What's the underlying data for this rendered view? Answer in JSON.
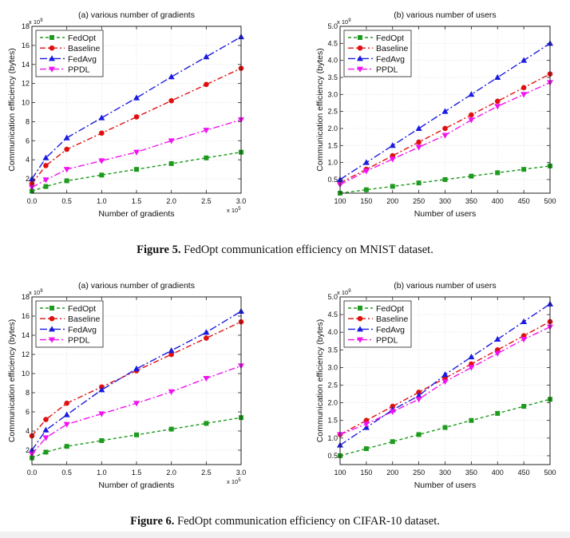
{
  "figures": [
    {
      "label": "Figure 5.",
      "caption": "FedOpt communication efficiency on MNIST dataset."
    },
    {
      "label": "Figure 6.",
      "caption": "FedOpt communication efficiency on CIFAR-10 dataset."
    }
  ],
  "colors": {
    "FedOpt": "#1e9a1e",
    "Baseline": "#e01010",
    "FedAvg": "#1a1ae0",
    "PPDL": "#f013f0"
  },
  "chart_data": [
    {
      "type": "line",
      "title": "(a) various number of gradients",
      "xlabel": "Number of gradients",
      "ylabel": "Communication efficiency (bytes)",
      "x_exponent": "x 10",
      "x_exponent_power": "5",
      "y_exponent": "x 10",
      "y_exponent_power": "9",
      "xlim": [
        0,
        3.0
      ],
      "ylim": [
        0.5,
        18
      ],
      "xticks": [
        "0.0",
        "0.5",
        "1.0",
        "1.5",
        "2.0",
        "2.5",
        "3.0"
      ],
      "yticks": [
        "2",
        "4",
        "6",
        "8",
        "10",
        "12",
        "14",
        "16",
        "18"
      ],
      "legend_position": "top-left",
      "x": [
        0,
        0.2,
        0.5,
        1.0,
        1.5,
        2.0,
        2.5,
        3.0
      ],
      "series": [
        {
          "name": "FedOpt",
          "values": [
            0.7,
            1.2,
            1.8,
            2.4,
            3.0,
            3.6,
            4.2,
            4.8
          ]
        },
        {
          "name": "Baseline",
          "values": [
            1.5,
            3.4,
            5.1,
            6.8,
            8.5,
            10.2,
            11.9,
            13.6
          ]
        },
        {
          "name": "FedAvg",
          "values": [
            2.0,
            4.2,
            6.3,
            8.4,
            10.5,
            12.7,
            14.8,
            16.9
          ]
        },
        {
          "name": "PPDL",
          "values": [
            1.1,
            1.9,
            3.0,
            3.9,
            4.8,
            6.0,
            7.1,
            8.2
          ]
        }
      ]
    },
    {
      "type": "line",
      "title": "(b) various number of users",
      "xlabel": "Number of users",
      "ylabel": "Communication efficiency (bytes)",
      "y_exponent": "x 10",
      "y_exponent_power": "9",
      "xlim": [
        100,
        500
      ],
      "ylim": [
        0.1,
        5.0
      ],
      "xticks": [
        "100",
        "150",
        "200",
        "250",
        "300",
        "350",
        "400",
        "450",
        "500"
      ],
      "yticks": [
        "0.5",
        "1.0",
        "1.5",
        "2.0",
        "2.5",
        "3.0",
        "3.5",
        "4.0",
        "4.5",
        "5.0"
      ],
      "legend_position": "top-left",
      "x": [
        100,
        150,
        200,
        250,
        300,
        350,
        400,
        450,
        500
      ],
      "series": [
        {
          "name": "FedOpt",
          "values": [
            0.1,
            0.2,
            0.3,
            0.4,
            0.5,
            0.6,
            0.7,
            0.8,
            0.9
          ]
        },
        {
          "name": "Baseline",
          "values": [
            0.4,
            0.8,
            1.2,
            1.6,
            2.0,
            2.4,
            2.8,
            3.2,
            3.6
          ]
        },
        {
          "name": "FedAvg",
          "values": [
            0.5,
            1.0,
            1.5,
            2.0,
            2.5,
            3.0,
            3.5,
            4.0,
            4.5
          ]
        },
        {
          "name": "PPDL",
          "values": [
            0.35,
            0.75,
            1.1,
            1.45,
            1.8,
            2.25,
            2.65,
            3.0,
            3.35
          ]
        }
      ]
    },
    {
      "type": "line",
      "title": "(a) various number of gradients",
      "xlabel": "Number of gradients",
      "ylabel": "Communication efficiency (bytes)",
      "x_exponent": "x 10",
      "x_exponent_power": "5",
      "y_exponent": "x 10",
      "y_exponent_power": "9",
      "xlim": [
        0,
        3.0
      ],
      "ylim": [
        0.5,
        18
      ],
      "xticks": [
        "0.0",
        "0.5",
        "1.0",
        "1.5",
        "2.0",
        "2.5",
        "3.0"
      ],
      "yticks": [
        "2",
        "4",
        "6",
        "8",
        "10",
        "12",
        "14",
        "16",
        "18"
      ],
      "legend_position": "top-left",
      "x": [
        0,
        0.2,
        0.5,
        1.0,
        1.5,
        2.0,
        2.5,
        3.0
      ],
      "series": [
        {
          "name": "FedOpt",
          "values": [
            1.2,
            1.8,
            2.4,
            3.0,
            3.6,
            4.2,
            4.8,
            5.4
          ]
        },
        {
          "name": "Baseline",
          "values": [
            3.5,
            5.2,
            6.9,
            8.6,
            10.3,
            12.0,
            13.7,
            15.4
          ]
        },
        {
          "name": "FedAvg",
          "values": [
            2.0,
            4.1,
            5.7,
            8.3,
            10.5,
            12.4,
            14.3,
            16.5
          ]
        },
        {
          "name": "PPDL",
          "values": [
            1.6,
            3.3,
            4.7,
            5.8,
            6.9,
            8.1,
            9.5,
            10.8
          ]
        }
      ]
    },
    {
      "type": "line",
      "title": "(b) various number of users",
      "xlabel": "Number of users",
      "ylabel": "Communication efficiency (bytes)",
      "y_exponent": "x 10",
      "y_exponent_power": "9",
      "xlim": [
        100,
        500
      ],
      "ylim": [
        0.25,
        5.0
      ],
      "xticks": [
        "100",
        "150",
        "200",
        "250",
        "300",
        "350",
        "400",
        "450",
        "500"
      ],
      "yticks": [
        "0.5",
        "1.0",
        "1.5",
        "2.0",
        "2.5",
        "3.0",
        "3.5",
        "4.0",
        "4.5",
        "5.0"
      ],
      "legend_position": "top-left",
      "x": [
        100,
        150,
        200,
        250,
        300,
        350,
        400,
        450,
        500
      ],
      "series": [
        {
          "name": "FedOpt",
          "values": [
            0.5,
            0.7,
            0.9,
            1.1,
            1.3,
            1.5,
            1.7,
            1.9,
            2.1
          ]
        },
        {
          "name": "Baseline",
          "values": [
            1.1,
            1.5,
            1.9,
            2.3,
            2.7,
            3.1,
            3.5,
            3.9,
            4.3
          ]
        },
        {
          "name": "FedAvg",
          "values": [
            0.8,
            1.3,
            1.8,
            2.2,
            2.8,
            3.3,
            3.8,
            4.3,
            4.8
          ]
        },
        {
          "name": "PPDL",
          "values": [
            1.1,
            1.4,
            1.75,
            2.1,
            2.6,
            3.0,
            3.4,
            3.8,
            4.15
          ]
        }
      ]
    }
  ]
}
